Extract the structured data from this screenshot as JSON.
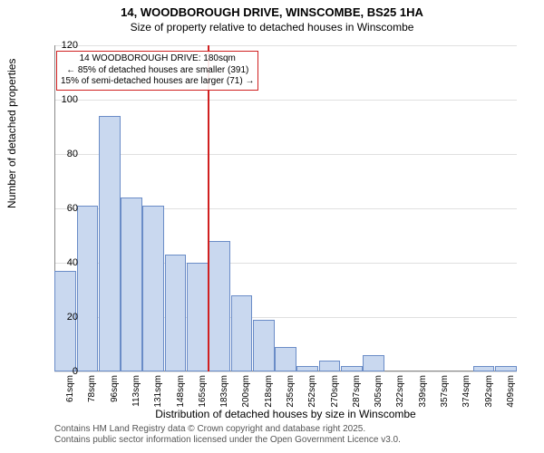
{
  "title": "14, WOODBOROUGH DRIVE, WINSCOMBE, BS25 1HA",
  "subtitle": "Size of property relative to detached houses in Winscombe",
  "ylabel": "Number of detached properties",
  "xlabel": "Distribution of detached houses by size in Winscombe",
  "footer_line1": "Contains HM Land Registry data © Crown copyright and database right 2025.",
  "footer_line2": "Contains public sector information licensed under the Open Government Licence v3.0.",
  "chart": {
    "type": "histogram",
    "ylim": [
      0,
      120
    ],
    "ytick_step": 20,
    "background_color": "#ffffff",
    "grid_color": "#e0e0e0",
    "bar_fill": "#c9d8ef",
    "bar_border": "#6a8cc7",
    "marker_color": "#d02020",
    "label_fontsize": 12,
    "tick_fontsize": 10,
    "categories": [
      "61sqm",
      "78sqm",
      "96sqm",
      "113sqm",
      "131sqm",
      "148sqm",
      "165sqm",
      "183sqm",
      "200sqm",
      "218sqm",
      "235sqm",
      "252sqm",
      "270sqm",
      "287sqm",
      "305sqm",
      "322sqm",
      "339sqm",
      "357sqm",
      "374sqm",
      "392sqm",
      "409sqm"
    ],
    "values": [
      37,
      61,
      94,
      64,
      61,
      43,
      40,
      48,
      28,
      19,
      9,
      2,
      4,
      2,
      6,
      0,
      0,
      0,
      0,
      2,
      2
    ],
    "marker_bin_index": 7,
    "annotation": {
      "line1": "14 WOODBOROUGH DRIVE: 180sqm",
      "line2": "← 85% of detached houses are smaller (391)",
      "line3": "15% of semi-detached houses are larger (71) →"
    }
  }
}
